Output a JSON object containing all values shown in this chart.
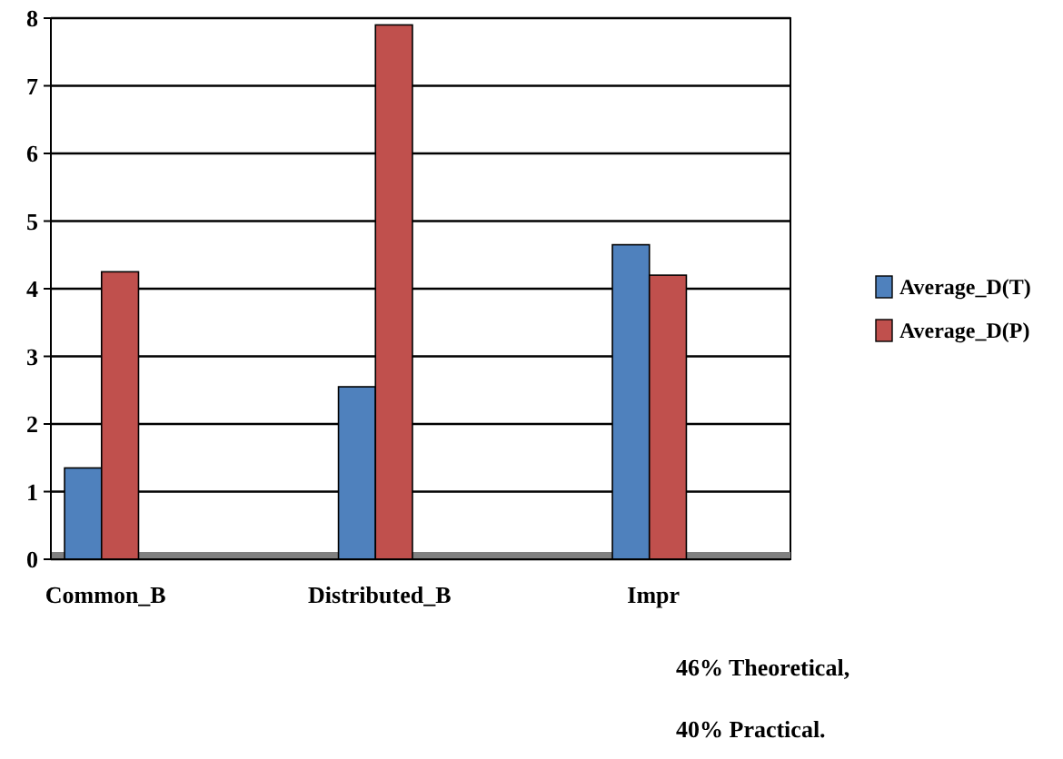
{
  "chart_data": {
    "type": "bar",
    "categories": [
      "Common_B",
      "Distributed_B",
      "Impr"
    ],
    "series": [
      {
        "name": "Average_D(T)",
        "color": "#4f81bd",
        "values": [
          1.35,
          2.55,
          4.65
        ]
      },
      {
        "name": "Average_D(P)",
        "color": "#c0504d",
        "values": [
          4.25,
          7.9,
          4.2
        ]
      }
    ],
    "ylim": [
      0,
      8
    ],
    "yticks": [
      0,
      1,
      2,
      3,
      4,
      5,
      6,
      7,
      8
    ],
    "grid": "y",
    "legend": "right",
    "annotations": [
      "46% Theoretical,",
      "40% Practical."
    ]
  }
}
